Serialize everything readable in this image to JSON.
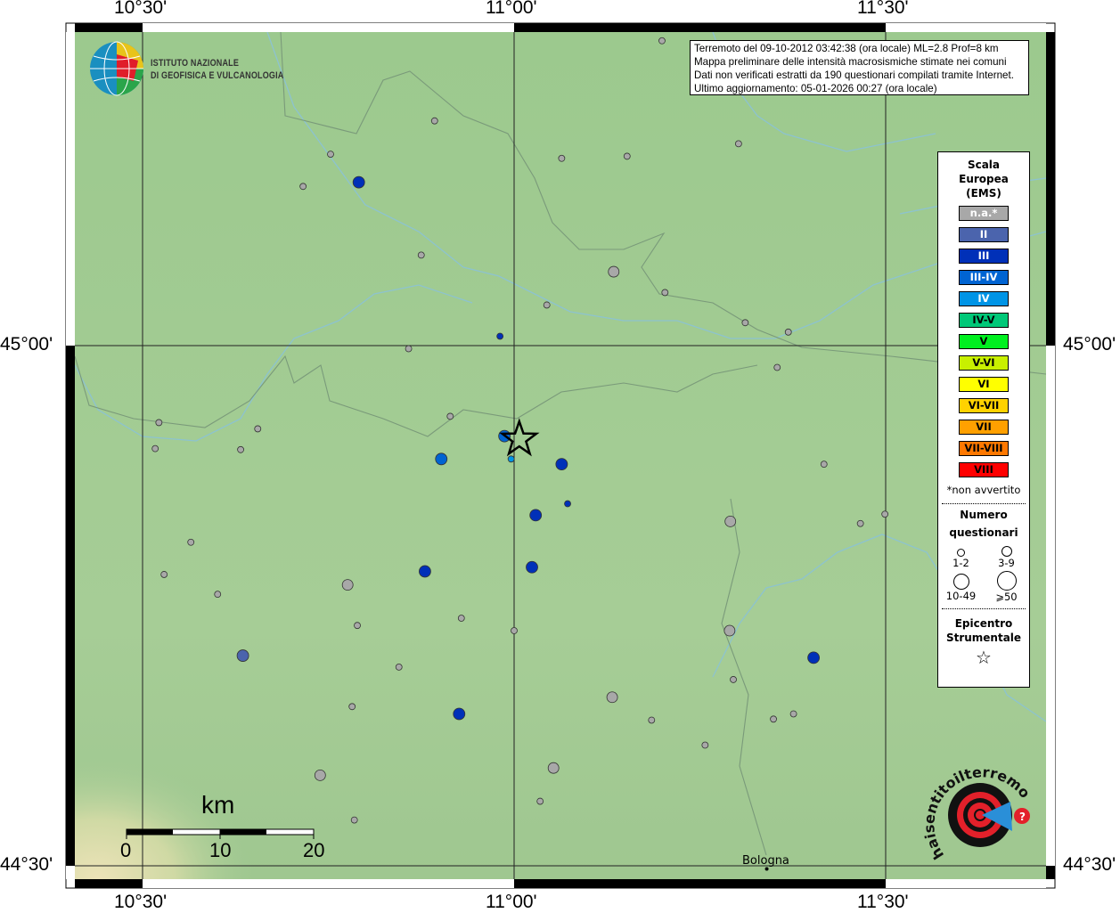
{
  "map": {
    "lon_range": [
      10.4,
      11.72
    ],
    "lat_range": [
      44.49,
      45.3
    ],
    "grid_lon": [
      10.5,
      11.0,
      11.5
    ],
    "grid_lat": [
      45.0,
      44.5
    ],
    "lon_labels": [
      "10°30'",
      "11°00'",
      "11°30'"
    ],
    "lat_labels": [
      "45°00'",
      "44°30'"
    ],
    "colors": {
      "na": "#a8a8a8",
      "II": "#4b64ad",
      "III": "#0030b8",
      "III-IV": "#0064d2",
      "IV": "#0094e6",
      "terrain": "#a6cc96"
    },
    "epicenter": {
      "lon": 11.007,
      "lat": 44.91
    },
    "places": [
      {
        "name": "Bologna",
        "lon": 11.34,
        "lat": 44.497
      }
    ],
    "points": [
      {
        "lon": 11.199,
        "lat": 45.293,
        "i": "na",
        "n": "1-2"
      },
      {
        "lon": 10.893,
        "lat": 45.216,
        "i": "na",
        "n": "1-2"
      },
      {
        "lon": 10.753,
        "lat": 45.184,
        "i": "na",
        "n": "1-2"
      },
      {
        "lon": 10.716,
        "lat": 45.153,
        "i": "na",
        "n": "1-2"
      },
      {
        "lon": 11.064,
        "lat": 45.18,
        "i": "na",
        "n": "1-2"
      },
      {
        "lon": 11.152,
        "lat": 45.182,
        "i": "na",
        "n": "1-2"
      },
      {
        "lon": 11.302,
        "lat": 45.194,
        "i": "na",
        "n": "1-2"
      },
      {
        "lon": 10.875,
        "lat": 45.087,
        "i": "na",
        "n": "1-2"
      },
      {
        "lon": 11.044,
        "lat": 45.039,
        "i": "na",
        "n": "1-2"
      },
      {
        "lon": 11.203,
        "lat": 45.051,
        "i": "na",
        "n": "1-2"
      },
      {
        "lon": 11.311,
        "lat": 45.022,
        "i": "na",
        "n": "1-2"
      },
      {
        "lon": 11.369,
        "lat": 45.013,
        "i": "na",
        "n": "1-2"
      },
      {
        "lon": 10.858,
        "lat": 44.997,
        "i": "na",
        "n": "1-2"
      },
      {
        "lon": 11.354,
        "lat": 44.979,
        "i": "na",
        "n": "1-2"
      },
      {
        "lon": 10.914,
        "lat": 44.932,
        "i": "na",
        "n": "1-2"
      },
      {
        "lon": 10.522,
        "lat": 44.926,
        "i": "na",
        "n": "1-2"
      },
      {
        "lon": 10.655,
        "lat": 44.92,
        "i": "na",
        "n": "1-2"
      },
      {
        "lon": 10.517,
        "lat": 44.901,
        "i": "na",
        "n": "1-2"
      },
      {
        "lon": 10.632,
        "lat": 44.9,
        "i": "na",
        "n": "1-2"
      },
      {
        "lon": 11.417,
        "lat": 44.886,
        "i": "na",
        "n": "1-2"
      },
      {
        "lon": 11.466,
        "lat": 44.829,
        "i": "na",
        "n": "1-2"
      },
      {
        "lon": 11.499,
        "lat": 44.838,
        "i": "na",
        "n": "1-2"
      },
      {
        "lon": 10.565,
        "lat": 44.811,
        "i": "na",
        "n": "1-2"
      },
      {
        "lon": 10.529,
        "lat": 44.78,
        "i": "na",
        "n": "1-2"
      },
      {
        "lon": 10.601,
        "lat": 44.761,
        "i": "na",
        "n": "1-2"
      },
      {
        "lon": 10.929,
        "lat": 44.738,
        "i": "na",
        "n": "1-2"
      },
      {
        "lon": 10.789,
        "lat": 44.731,
        "i": "na",
        "n": "1-2"
      },
      {
        "lon": 11.0,
        "lat": 44.726,
        "i": "na",
        "n": "1-2"
      },
      {
        "lon": 10.845,
        "lat": 44.691,
        "i": "na",
        "n": "1-2"
      },
      {
        "lon": 11.295,
        "lat": 44.679,
        "i": "na",
        "n": "1-2"
      },
      {
        "lon": 10.782,
        "lat": 44.653,
        "i": "na",
        "n": "1-2"
      },
      {
        "lon": 11.185,
        "lat": 44.64,
        "i": "na",
        "n": "1-2"
      },
      {
        "lon": 11.349,
        "lat": 44.641,
        "i": "na",
        "n": "1-2"
      },
      {
        "lon": 11.376,
        "lat": 44.646,
        "i": "na",
        "n": "1-2"
      },
      {
        "lon": 11.257,
        "lat": 44.616,
        "i": "na",
        "n": "1-2"
      },
      {
        "lon": 11.035,
        "lat": 44.562,
        "i": "na",
        "n": "1-2"
      },
      {
        "lon": 10.785,
        "lat": 44.544,
        "i": "na",
        "n": "1-2"
      },
      {
        "lon": 11.134,
        "lat": 45.071,
        "i": "na",
        "n": "3-9"
      },
      {
        "lon": 11.291,
        "lat": 44.831,
        "i": "na",
        "n": "3-9"
      },
      {
        "lon": 10.776,
        "lat": 44.77,
        "i": "na",
        "n": "3-9"
      },
      {
        "lon": 11.29,
        "lat": 44.726,
        "i": "na",
        "n": "3-9"
      },
      {
        "lon": 11.132,
        "lat": 44.662,
        "i": "na",
        "n": "3-9"
      },
      {
        "lon": 11.053,
        "lat": 44.594,
        "i": "na",
        "n": "3-9"
      },
      {
        "lon": 10.739,
        "lat": 44.587,
        "i": "na",
        "n": "3-9"
      },
      {
        "lon": 10.981,
        "lat": 45.009,
        "i": "III",
        "n": "1-2"
      },
      {
        "lon": 11.072,
        "lat": 44.848,
        "i": "III",
        "n": "1-2"
      },
      {
        "lon": 10.791,
        "lat": 45.157,
        "i": "III",
        "n": "3-9"
      },
      {
        "lon": 11.064,
        "lat": 44.886,
        "i": "III",
        "n": "3-9"
      },
      {
        "lon": 11.029,
        "lat": 44.837,
        "i": "III",
        "n": "3-9"
      },
      {
        "lon": 11.024,
        "lat": 44.787,
        "i": "III",
        "n": "3-9"
      },
      {
        "lon": 10.88,
        "lat": 44.783,
        "i": "III",
        "n": "3-9"
      },
      {
        "lon": 10.926,
        "lat": 44.646,
        "i": "III",
        "n": "3-9"
      },
      {
        "lon": 11.403,
        "lat": 44.7,
        "i": "III",
        "n": "3-9"
      },
      {
        "lon": 10.902,
        "lat": 44.891,
        "i": "III-IV",
        "n": "3-9"
      },
      {
        "lon": 10.987,
        "lat": 44.913,
        "i": "III-IV",
        "n": "3-9"
      },
      {
        "lon": 10.996,
        "lat": 44.891,
        "i": "IV",
        "n": "1-2"
      },
      {
        "lon": 10.635,
        "lat": 44.702,
        "i": "II",
        "n": "3-9"
      }
    ]
  },
  "info": {
    "lines": [
      "Terremoto del 09-10-2012 03:42:38 (ora locale) ML=2.8 Prof=8 km",
      "Mappa preliminare delle intensità macrosismiche stimate nei comuni",
      "Dati non verificati estratti da 190 questionari compilati tramite Internet.",
      "Ultimo aggiornamento: 05-01-2026 00:27 (ora locale)"
    ]
  },
  "logo": {
    "line1": "ISTITUTO NAZIONALE",
    "line2": "DI GEOFISICA E VULCANOLOGIA",
    "hst": "www.haisentitoilterremoto.it"
  },
  "legend": {
    "title": [
      "Scala",
      "Europea",
      "(EMS)"
    ],
    "scale": [
      {
        "label": "n.a.*",
        "bg": "#a8a8a8",
        "fg": "#ffffff"
      },
      {
        "label": "II",
        "bg": "#4b64ad",
        "fg": "#ffffff"
      },
      {
        "label": "III",
        "bg": "#0030b8",
        "fg": "#ffffff"
      },
      {
        "label": "III-IV",
        "bg": "#0064d2",
        "fg": "#ffffff"
      },
      {
        "label": "IV",
        "bg": "#0094e6",
        "fg": "#ffffff"
      },
      {
        "label": "IV-V",
        "bg": "#00c878",
        "fg": "#000000"
      },
      {
        "label": "V",
        "bg": "#00f020",
        "fg": "#000000"
      },
      {
        "label": "V-VI",
        "bg": "#c8f000",
        "fg": "#000000"
      },
      {
        "label": "VI",
        "bg": "#ffff00",
        "fg": "#000000"
      },
      {
        "label": "VI-VII",
        "bg": "#ffd200",
        "fg": "#000000"
      },
      {
        "label": "VII",
        "bg": "#ffa000",
        "fg": "#000000"
      },
      {
        "label": "VII-VIII",
        "bg": "#ff7800",
        "fg": "#000000"
      },
      {
        "label": "VIII",
        "bg": "#ff0000",
        "fg": "#000000"
      }
    ],
    "note": "*non avvertito",
    "count_title": [
      "Numero",
      "questionari"
    ],
    "counts": [
      "1-2",
      "3-9",
      "10-49",
      "⩾50"
    ],
    "epi_title": [
      "Epicentro",
      "Strumentale"
    ]
  },
  "scalebar": {
    "unit": "km",
    "labels": [
      "0",
      "10",
      "20"
    ]
  }
}
